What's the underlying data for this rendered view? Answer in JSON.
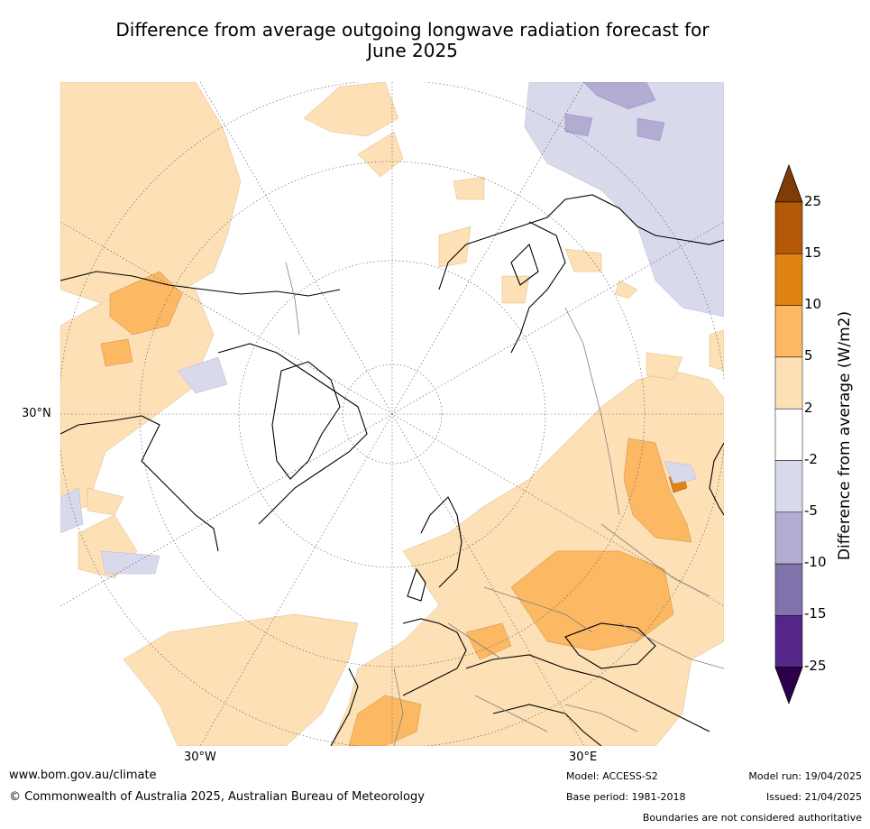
{
  "title_line1": "Difference from average outgoing longwave radiation forecast for",
  "title_line2": "June 2025",
  "map": {
    "lat_label": "30°N",
    "lon_labels": {
      "west": "30°W",
      "east": "30°E"
    },
    "colors": {
      "ocean": "#ffffff",
      "pos_2_5": "#fde0b5",
      "pos_5_10": "#fdb863",
      "pos_10_15": "#e08214",
      "neg_2_5": "#d8daeb",
      "neg_5_10": "#b2abd2",
      "coast": "#000000",
      "border": "#808080"
    }
  },
  "colorbar": {
    "title": "Difference from average (W/m2)",
    "ticks": [
      "25",
      "15",
      "10",
      "5",
      "2",
      "-2",
      "-5",
      "-10",
      "-15",
      "-25"
    ],
    "colors": [
      "#7f3b08",
      "#b35806",
      "#e08214",
      "#fdb863",
      "#fee0b6",
      "#ffffff",
      "#d8daeb",
      "#b2abd2",
      "#8073ac",
      "#542788",
      "#2d004b"
    ]
  },
  "footer": {
    "website": "www.bom.gov.au/climate",
    "copyright": "© Commonwealth of Australia 2025, Australian Bureau of Meteorology",
    "model": "Model: ACCESS-S2",
    "base_period": "Base period: 1981-2018",
    "model_run": "Model run: 19/04/2025",
    "issued": "Issued: 21/04/2025",
    "disclaimer": "Boundaries are not considered authoritative"
  }
}
